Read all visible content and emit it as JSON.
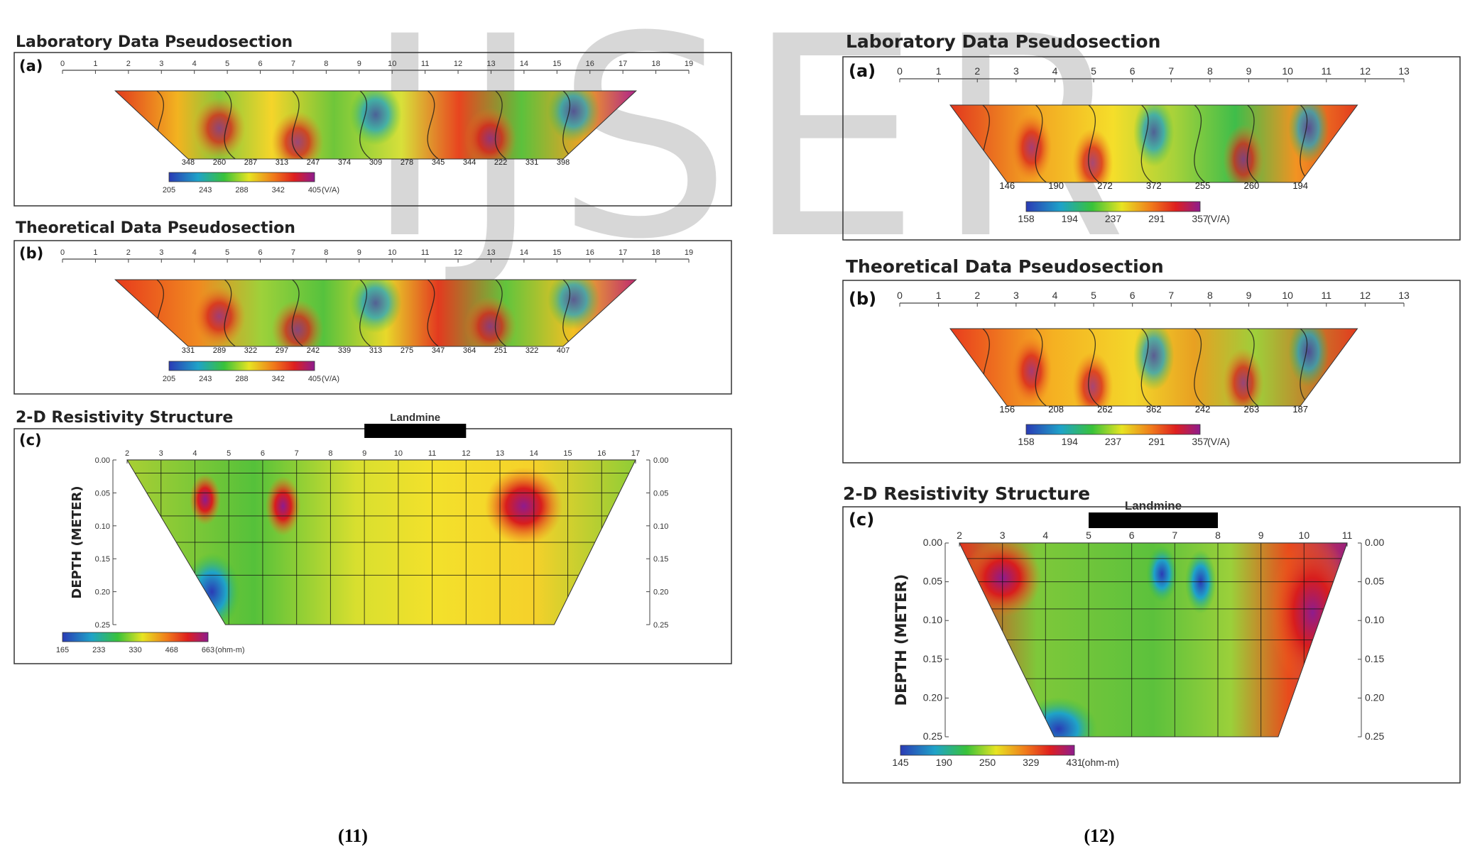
{
  "watermark": "IJSER",
  "chart_data": [
    {
      "type": "heatmap",
      "figure": "(11)",
      "panel": "(a)",
      "title": "Laboratory Data Pseudosection",
      "x_ticks": [
        "0",
        "1",
        "2",
        "3",
        "4",
        "5",
        "6",
        "7",
        "8",
        "9",
        "10",
        "11",
        "12",
        "13",
        "14",
        "15",
        "16",
        "17",
        "18",
        "19"
      ],
      "xlim": [
        0,
        19
      ],
      "bottom_values": [
        "348",
        "260",
        "287",
        "313",
        "247",
        "374",
        "309",
        "278",
        "345",
        "344",
        "222",
        "331",
        "398"
      ],
      "colorbar": {
        "ticks": [
          "205",
          "243",
          "288",
          "342",
          "405"
        ],
        "unit": "(V/A)"
      }
    },
    {
      "type": "heatmap",
      "figure": "(11)",
      "panel": "(b)",
      "title": "Theoretical Data Pseudosection",
      "x_ticks": [
        "0",
        "1",
        "2",
        "3",
        "4",
        "5",
        "6",
        "7",
        "8",
        "9",
        "10",
        "11",
        "12",
        "13",
        "14",
        "15",
        "16",
        "17",
        "18",
        "19"
      ],
      "xlim": [
        0,
        19
      ],
      "bottom_values": [
        "331",
        "289",
        "322",
        "297",
        "242",
        "339",
        "313",
        "275",
        "347",
        "364",
        "251",
        "322",
        "407"
      ],
      "colorbar": {
        "ticks": [
          "205",
          "243",
          "288",
          "342",
          "405"
        ],
        "unit": "(V/A)"
      }
    },
    {
      "type": "heatmap",
      "figure": "(11)",
      "panel": "(c)",
      "title": "2-D Resistivity Structure",
      "marker_label": "Landmine",
      "marker_range": [
        9,
        12
      ],
      "ylabel": "DEPTH (METER)",
      "x_ticks": [
        "2",
        "3",
        "4",
        "5",
        "6",
        "7",
        "8",
        "9",
        "10",
        "11",
        "12",
        "13",
        "14",
        "15",
        "16",
        "17"
      ],
      "xlim": [
        2,
        17
      ],
      "y_ticks": [
        "0.00",
        "0.05",
        "0.10",
        "0.15",
        "0.20",
        "0.25"
      ],
      "ylim": [
        0,
        0.25
      ],
      "colorbar": {
        "ticks": [
          "165",
          "233",
          "330",
          "468",
          "663"
        ],
        "unit": "(ohm-m)"
      }
    },
    {
      "type": "heatmap",
      "figure": "(12)",
      "panel": "(a)",
      "title": "Laboratory Data Pseudosection",
      "x_ticks": [
        "0",
        "1",
        "2",
        "3",
        "4",
        "5",
        "6",
        "7",
        "8",
        "9",
        "10",
        "11",
        "12",
        "13"
      ],
      "xlim": [
        0,
        13
      ],
      "bottom_values": [
        "146",
        "190",
        "272",
        "372",
        "255",
        "260",
        "194"
      ],
      "colorbar": {
        "ticks": [
          "158",
          "194",
          "237",
          "291",
          "357"
        ],
        "unit": "(V/A)"
      }
    },
    {
      "type": "heatmap",
      "figure": "(12)",
      "panel": "(b)",
      "title": "Theoretical Data Pseudosection",
      "x_ticks": [
        "0",
        "1",
        "2",
        "3",
        "4",
        "5",
        "6",
        "7",
        "8",
        "9",
        "10",
        "11",
        "12",
        "13"
      ],
      "xlim": [
        0,
        13
      ],
      "bottom_values": [
        "156",
        "208",
        "262",
        "362",
        "242",
        "263",
        "187"
      ],
      "colorbar": {
        "ticks": [
          "158",
          "194",
          "237",
          "291",
          "357"
        ],
        "unit": "(V/A)"
      }
    },
    {
      "type": "heatmap",
      "figure": "(12)",
      "panel": "(c)",
      "title": "2-D Resistivity Structure",
      "marker_label": "Landmine",
      "marker_range": [
        5,
        8
      ],
      "ylabel": "DEPTH (METER)",
      "x_ticks": [
        "2",
        "3",
        "4",
        "5",
        "6",
        "7",
        "8",
        "9",
        "10",
        "11"
      ],
      "xlim": [
        2,
        11
      ],
      "y_ticks": [
        "0.00",
        "0.05",
        "0.10",
        "0.15",
        "0.20",
        "0.25"
      ],
      "ylim": [
        0,
        0.25
      ],
      "colorbar": {
        "ticks": [
          "145",
          "190",
          "250",
          "329",
          "431"
        ],
        "unit": "(ohm-m)"
      }
    }
  ],
  "captions": {
    "left": "(11)",
    "right": "(12)"
  }
}
